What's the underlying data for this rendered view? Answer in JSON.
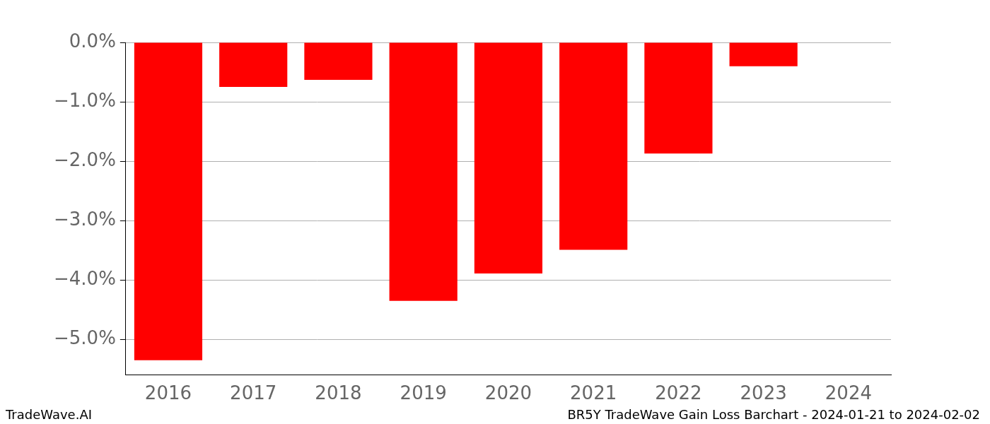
{
  "chart_data": {
    "type": "bar",
    "title": "BR5Y TradeWave Gain Loss Barchart - 2024-01-21 to 2024-02-02",
    "annotations": [
      "TradeWave.AI"
    ],
    "categories": [
      "2016",
      "2017",
      "2018",
      "2019",
      "2020",
      "2021",
      "2022",
      "2023",
      "2024"
    ],
    "values": [
      -5.35,
      -0.75,
      -0.63,
      -4.35,
      -3.89,
      -3.49,
      -1.87,
      -0.4,
      null
    ],
    "color": "#ff0000",
    "ylim": [
      -5.6,
      0
    ],
    "yticks": [
      {
        "value": -5,
        "label": "−5.0%"
      },
      {
        "value": -4,
        "label": "−4.0%"
      },
      {
        "value": -3,
        "label": "−3.0%"
      },
      {
        "value": -2,
        "label": "−2.0%"
      },
      {
        "value": -1,
        "label": "−1.0%"
      },
      {
        "value": 0,
        "label": "0.0%"
      }
    ],
    "grid": true
  }
}
